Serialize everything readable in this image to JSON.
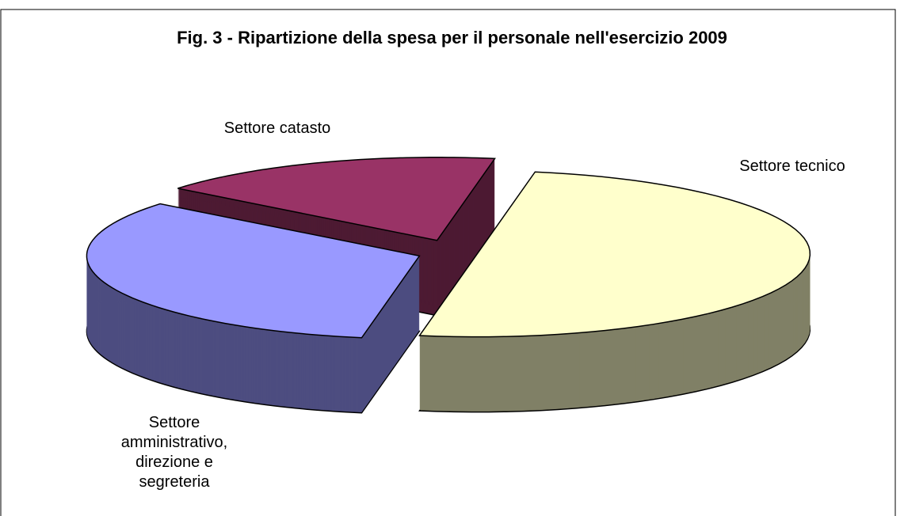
{
  "chart_data": {
    "type": "pie3d",
    "title": "Fig. 3 - Ripartizione della spesa per il personale nell'esercizio 2009",
    "categories": [
      "Settore tecnico",
      "Settore amministrativo, direzione e segreteria",
      "Settore catasto"
    ],
    "values": [
      50,
      33,
      17
    ],
    "colors": [
      "#ffffcc",
      "#9999ff",
      "#993366"
    ],
    "side_colors": [
      "#808066",
      "#4d4d80",
      "#4d1a33"
    ]
  }
}
